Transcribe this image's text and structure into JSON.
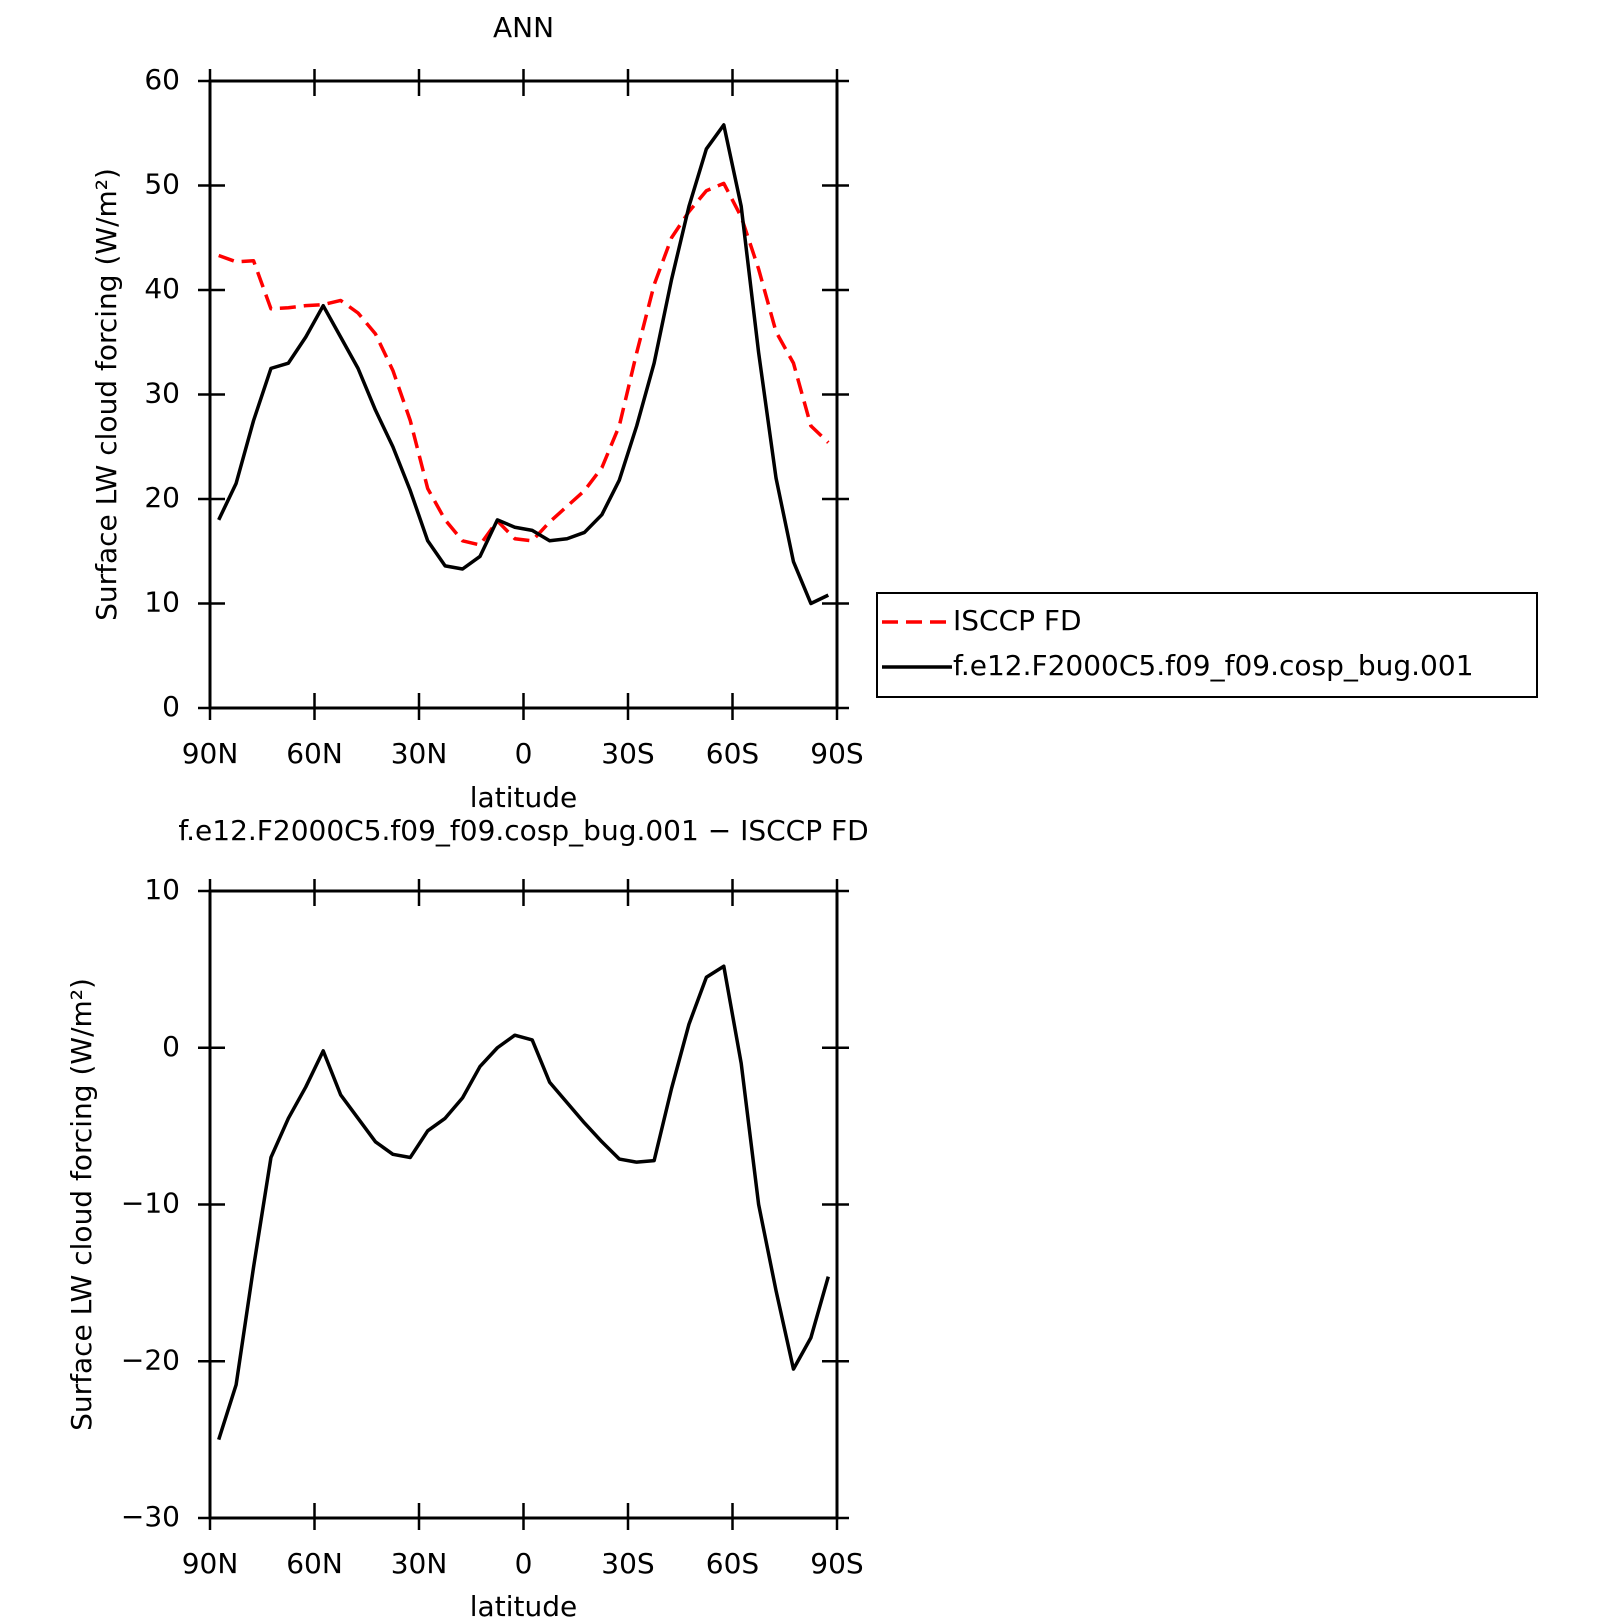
{
  "chart_data": [
    {
      "type": "line",
      "title": "ANN",
      "x_label": "latitude",
      "y_label": "Surface LW cloud forcing (W/m²)",
      "x": [
        87.5,
        82.5,
        77.5,
        72.5,
        67.5,
        62.5,
        57.5,
        52.5,
        47.5,
        42.5,
        37.5,
        32.5,
        27.5,
        22.5,
        17.5,
        12.5,
        7.5,
        2.5,
        -2.5,
        -7.5,
        -12.5,
        -17.5,
        -22.5,
        -27.5,
        -32.5,
        -37.5,
        -42.5,
        -47.5,
        -52.5,
        -57.5,
        -62.5,
        -67.5,
        -72.5,
        -77.5,
        -82.5,
        -87.5
      ],
      "xlim": [
        90,
        -90
      ],
      "xticks": [
        {
          "value": 90,
          "label": "90N"
        },
        {
          "value": 60,
          "label": "60N"
        },
        {
          "value": 30,
          "label": "30N"
        },
        0,
        {
          "value": -30,
          "label": "30S"
        },
        {
          "value": -60,
          "label": "60S"
        },
        {
          "value": -90,
          "label": "90S"
        }
      ],
      "ylim": [
        0,
        60
      ],
      "yticks": [
        0,
        10,
        20,
        30,
        40,
        50,
        60
      ],
      "legend": "right",
      "series": [
        {
          "name": "ISCCP FD",
          "color": "#ff0000",
          "linestyle": "dashed",
          "values": [
            43.3,
            42.7,
            42.8,
            38.2,
            38.3,
            38.5,
            38.6,
            39,
            37.8,
            35.8,
            32.3,
            27.5,
            21,
            18,
            16,
            15.6,
            17.9,
            16.2,
            16,
            17.8,
            19.3,
            20.8,
            23,
            27,
            34,
            40.5,
            45,
            47.5,
            49.5,
            50.2,
            47,
            42,
            36,
            33,
            27,
            25.4
          ]
        },
        {
          "name": "f.e12.F2000C5.f09_f09.cosp_bug.001",
          "color": "#000000",
          "linestyle": "solid",
          "values": [
            18,
            21.5,
            27.5,
            32.5,
            33,
            35.5,
            38.5,
            35.5,
            32.5,
            28.5,
            25,
            20.8,
            16,
            13.6,
            13.3,
            14.5,
            18,
            17.3,
            17,
            16,
            16.2,
            16.8,
            18.5,
            21.8,
            27,
            33,
            41,
            48,
            53.5,
            55.8,
            48,
            34,
            22,
            14,
            10,
            10.8
          ]
        }
      ]
    },
    {
      "type": "line",
      "title": "f.e12.F2000C5.f09_f09.cosp_bug.001 − ISCCP FD",
      "x_label": "latitude",
      "y_label": "Surface LW cloud forcing (W/m²)",
      "x": [
        87.5,
        82.5,
        77.5,
        72.5,
        67.5,
        62.5,
        57.5,
        52.5,
        47.5,
        42.5,
        37.5,
        32.5,
        27.5,
        22.5,
        17.5,
        12.5,
        7.5,
        2.5,
        -2.5,
        -7.5,
        -12.5,
        -17.5,
        -22.5,
        -27.5,
        -32.5,
        -37.5,
        -42.5,
        -47.5,
        -52.5,
        -57.5,
        -62.5,
        -67.5,
        -72.5,
        -77.5,
        -82.5,
        -87.5
      ],
      "xlim": [
        90,
        -90
      ],
      "xticks": [
        {
          "value": 90,
          "label": "90N"
        },
        {
          "value": 60,
          "label": "60N"
        },
        {
          "value": 30,
          "label": "30N"
        },
        0,
        {
          "value": -30,
          "label": "30S"
        },
        {
          "value": -60,
          "label": "60S"
        },
        {
          "value": -90,
          "label": "90S"
        }
      ],
      "ylim": [
        -30,
        10
      ],
      "yticks": [
        {
          "value": -30,
          "label": "−30"
        },
        {
          "value": -20,
          "label": "−20"
        },
        {
          "value": -10,
          "label": "−10"
        },
        0,
        10
      ],
      "series": [
        {
          "color": "#000000",
          "linestyle": "solid",
          "values": [
            -25,
            -21.5,
            -14,
            -7,
            -4.5,
            -2.5,
            -0.2,
            -3,
            -4.5,
            -6,
            -6.8,
            -7,
            -5.3,
            -4.5,
            -3.2,
            -1.2,
            0,
            0.8,
            0.5,
            -2.2,
            -3.5,
            -4.8,
            -6,
            -7.1,
            -7.3,
            -7.2,
            -2.6,
            1.5,
            4.5,
            5.2,
            -1,
            -10,
            -15.5,
            -20.5,
            -18.5,
            -14.6
          ]
        }
      ]
    }
  ]
}
